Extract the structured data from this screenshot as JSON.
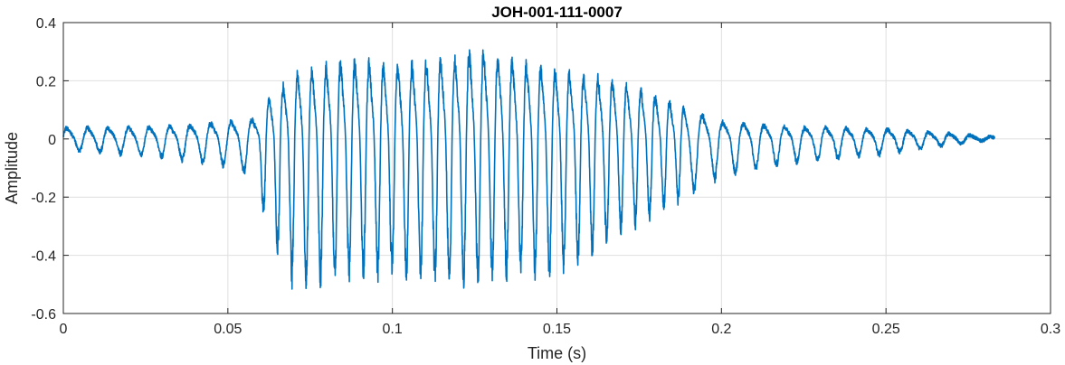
{
  "chart_data": {
    "type": "line",
    "title": "JOH-001-111-0007",
    "xlabel": "Time (s)",
    "ylabel": "Amplitude",
    "xlim": [
      0,
      0.3
    ],
    "ylim": [
      -0.6,
      0.4
    ],
    "x_ticks": [
      0,
      0.05,
      0.1,
      0.15,
      0.2,
      0.25,
      0.3
    ],
    "x_tick_labels": [
      "0",
      "0.05",
      "0.1",
      "0.15",
      "0.2",
      "0.25",
      "0.3"
    ],
    "y_ticks": [
      -0.6,
      -0.4,
      -0.2,
      0,
      0.2,
      0.4
    ],
    "y_tick_labels": [
      "-0.6",
      "-0.4",
      "-0.2",
      "0",
      "0.2",
      "0.4"
    ],
    "grid": true,
    "line_color": "#0072BD",
    "signal": {
      "x_start": 0,
      "x_end": 0.283,
      "envelope": {
        "t": [
          0,
          0.03,
          0.05,
          0.058,
          0.062,
          0.07,
          0.085,
          0.1,
          0.12,
          0.125,
          0.14,
          0.15,
          0.16,
          0.17,
          0.18,
          0.19,
          0.2,
          0.22,
          0.25,
          0.283
        ],
        "positive": [
          0.045,
          0.05,
          0.07,
          0.08,
          0.16,
          0.26,
          0.32,
          0.3,
          0.33,
          0.37,
          0.31,
          0.28,
          0.26,
          0.23,
          0.18,
          0.12,
          0.07,
          0.05,
          0.04,
          0.01
        ],
        "negative": [
          -0.035,
          -0.06,
          -0.09,
          -0.12,
          -0.3,
          -0.47,
          -0.45,
          -0.44,
          -0.48,
          -0.46,
          -0.43,
          -0.44,
          -0.38,
          -0.3,
          -0.25,
          -0.18,
          -0.12,
          -0.08,
          -0.05,
          0.0
        ]
      }
    }
  }
}
